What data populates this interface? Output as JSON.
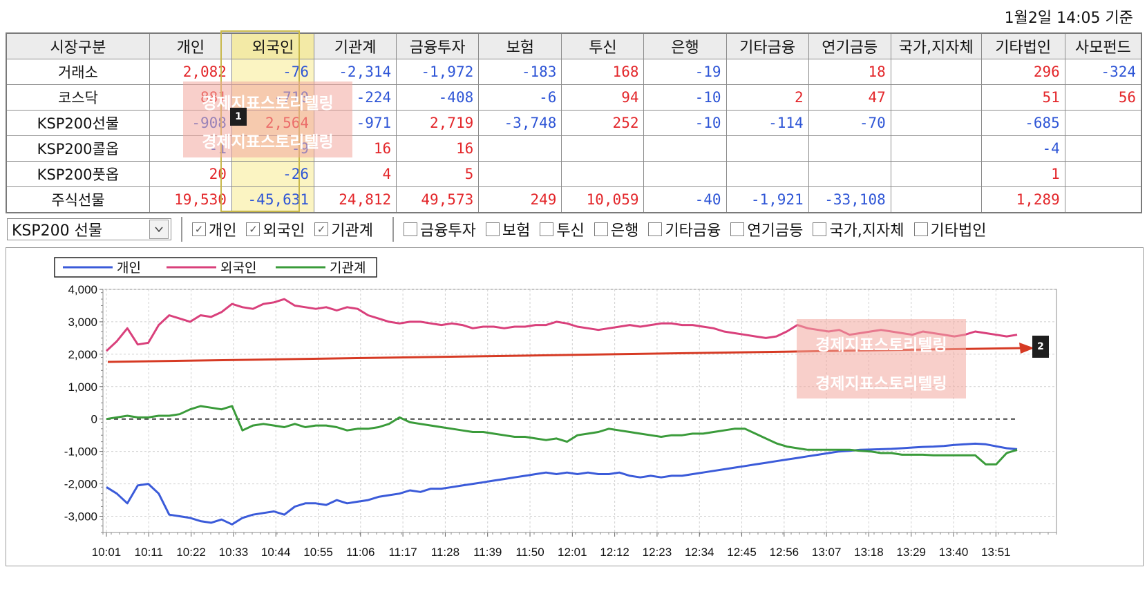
{
  "timestamp": "1월2일 14:05 기준",
  "table": {
    "headers": [
      "시장구분",
      "개인",
      "외국인",
      "기관계",
      "금융투자",
      "보험",
      "투신",
      "은행",
      "기타금융",
      "연기금등",
      "국가,지자체",
      "기타법인",
      "사모펀드"
    ],
    "rows": [
      {
        "label": "거래소",
        "cells": [
          "2,082",
          "-76",
          "-2,314",
          "-1,972",
          "-183",
          "168",
          "-19",
          "",
          "18",
          "",
          "296",
          "-324"
        ]
      },
      {
        "label": "코스닥",
        "cells": [
          "881",
          "-710",
          "-224",
          "-408",
          "-6",
          "94",
          "-10",
          "2",
          "47",
          "",
          "51",
          "56"
        ]
      },
      {
        "label": "KSP200선물",
        "cells": [
          "-908",
          "2,564",
          "-971",
          "2,719",
          "-3,748",
          "252",
          "-10",
          "-114",
          "-70",
          "",
          "-685",
          ""
        ]
      },
      {
        "label": "KSP200콜옵",
        "cells": [
          "-1",
          "-9",
          "16",
          "16",
          "",
          "",
          "",
          "",
          "",
          "",
          "-4",
          ""
        ]
      },
      {
        "label": "KSP200풋옵",
        "cells": [
          "20",
          "-26",
          "4",
          "5",
          "",
          "",
          "",
          "",
          "",
          "",
          "1",
          ""
        ]
      },
      {
        "label": "주식선물",
        "cells": [
          "19,530",
          "-45,631",
          "24,812",
          "49,573",
          "249",
          "10,059",
          "-40",
          "-1,921",
          "-33,108",
          "",
          "1,289",
          ""
        ]
      }
    ]
  },
  "controls": {
    "select_value": "KSP200 선물",
    "checkboxes": [
      {
        "label": "개인",
        "checked": true
      },
      {
        "label": "외국인",
        "checked": true
      },
      {
        "label": "기관계",
        "checked": true
      },
      {
        "label": "금융투자",
        "checked": false
      },
      {
        "label": "보험",
        "checked": false
      },
      {
        "label": "투신",
        "checked": false
      },
      {
        "label": "은행",
        "checked": false
      },
      {
        "label": "기타금융",
        "checked": false
      },
      {
        "label": "연기금등",
        "checked": false
      },
      {
        "label": "국가,지자체",
        "checked": false
      },
      {
        "label": "기타법인",
        "checked": false
      }
    ]
  },
  "watermark_text": "경제지표스토리텔링",
  "markers": [
    "1",
    "2"
  ],
  "colors": {
    "positive": "#e3262a",
    "negative": "#2e55d6",
    "highlight": "#fbf4c2",
    "arrow": "#d63a24"
  },
  "chart_data": {
    "type": "line",
    "x": [
      "10:01",
      "10:04",
      "10:07",
      "10:10",
      "10:11",
      "10:14",
      "10:17",
      "10:20",
      "10:22",
      "10:25",
      "10:28",
      "10:31",
      "10:33",
      "10:36",
      "10:39",
      "10:42",
      "10:44",
      "10:47",
      "10:50",
      "10:53",
      "10:55",
      "10:58",
      "11:01",
      "11:04",
      "11:06",
      "11:09",
      "11:12",
      "11:15",
      "11:17",
      "11:20",
      "11:23",
      "11:26",
      "11:28",
      "11:31",
      "11:34",
      "11:37",
      "11:39",
      "11:42",
      "11:45",
      "11:48",
      "11:50",
      "11:53",
      "11:56",
      "11:59",
      "12:01",
      "12:04",
      "12:07",
      "12:10",
      "12:12",
      "12:15",
      "12:18",
      "12:21",
      "12:23",
      "12:26",
      "12:29",
      "12:32",
      "12:34",
      "12:37",
      "12:40",
      "12:43",
      "12:45",
      "12:48",
      "12:51",
      "12:54",
      "12:56",
      "12:59",
      "13:02",
      "13:05",
      "13:07",
      "13:10",
      "13:13",
      "13:16",
      "13:18",
      "13:21",
      "13:24",
      "13:27",
      "13:29",
      "13:32",
      "13:35",
      "13:38",
      "13:40",
      "13:43",
      "13:46",
      "13:49",
      "13:51",
      "13:54",
      "13:57",
      "14:00"
    ],
    "x_ticks": [
      "10:01",
      "10:11",
      "10:22",
      "10:33",
      "10:44",
      "10:55",
      "11:06",
      "11:17",
      "11:28",
      "11:39",
      "11:50",
      "12:01",
      "12:12",
      "12:23",
      "12:34",
      "12:45",
      "12:56",
      "13:07",
      "13:18",
      "13:29",
      "13:40",
      "13:51"
    ],
    "series": [
      {
        "name": "개인",
        "color": "#3b5bd9",
        "values": [
          -2100,
          -2300,
          -2600,
          -2050,
          -2000,
          -2300,
          -2950,
          -3000,
          -3050,
          -3150,
          -3200,
          -3100,
          -3250,
          -3050,
          -2950,
          -2900,
          -2850,
          -2950,
          -2700,
          -2600,
          -2600,
          -2650,
          -2500,
          -2600,
          -2550,
          -2500,
          -2400,
          -2350,
          -2300,
          -2200,
          -2250,
          -2150,
          -2150,
          -2100,
          -2050,
          -2000,
          -1950,
          -1900,
          -1850,
          -1800,
          -1750,
          -1700,
          -1650,
          -1700,
          -1650,
          -1700,
          -1650,
          -1700,
          -1700,
          -1650,
          -1750,
          -1800,
          -1750,
          -1800,
          -1750,
          -1750,
          -1700,
          -1650,
          -1600,
          -1550,
          -1500,
          -1450,
          -1400,
          -1350,
          -1300,
          -1250,
          -1200,
          -1150,
          -1100,
          -1050,
          -1000,
          -980,
          -950,
          -940,
          -930,
          -920,
          -900,
          -880,
          -860,
          -850,
          -830,
          -800,
          -780,
          -760,
          -780,
          -840,
          -900,
          -930
        ]
      },
      {
        "name": "외국인",
        "color": "#d9407b",
        "values": [
          2100,
          2400,
          2800,
          2300,
          2350,
          2900,
          3200,
          3100,
          3000,
          3200,
          3150,
          3300,
          3550,
          3450,
          3400,
          3550,
          3600,
          3700,
          3500,
          3450,
          3400,
          3450,
          3350,
          3450,
          3400,
          3200,
          3100,
          3000,
          2950,
          3000,
          3000,
          2950,
          2900,
          2950,
          2900,
          2800,
          2850,
          2850,
          2800,
          2850,
          2850,
          2900,
          2900,
          3000,
          2950,
          2850,
          2800,
          2750,
          2800,
          2850,
          2900,
          2850,
          2900,
          2950,
          2950,
          2900,
          2900,
          2850,
          2800,
          2700,
          2650,
          2600,
          2550,
          2500,
          2550,
          2700,
          2900,
          2800,
          2750,
          2700,
          2750,
          2600,
          2650,
          2700,
          2750,
          2700,
          2650,
          2600,
          2700,
          2650,
          2600,
          2550,
          2600,
          2700,
          2650,
          2600,
          2550,
          2600
        ]
      },
      {
        "name": "기관계",
        "color": "#3a9b3a",
        "values": [
          0,
          50,
          100,
          50,
          50,
          100,
          100,
          150,
          300,
          400,
          350,
          300,
          400,
          -350,
          -200,
          -150,
          -200,
          -250,
          -150,
          -250,
          -200,
          -200,
          -250,
          -350,
          -300,
          -300,
          -250,
          -150,
          50,
          -100,
          -150,
          -200,
          -250,
          -300,
          -350,
          -400,
          -400,
          -450,
          -500,
          -550,
          -550,
          -600,
          -650,
          -600,
          -700,
          -500,
          -450,
          -400,
          -300,
          -350,
          -400,
          -450,
          -500,
          -550,
          -500,
          -500,
          -450,
          -450,
          -400,
          -350,
          -300,
          -300,
          -450,
          -600,
          -750,
          -850,
          -900,
          -950,
          -950,
          -950,
          -950,
          -950,
          -980,
          -1000,
          -1050,
          -1050,
          -1100,
          -1100,
          -1100,
          -1120,
          -1120,
          -1120,
          -1120,
          -1120,
          -1400,
          -1400,
          -1050,
          -950
        ]
      }
    ],
    "ylim": [
      -3500,
      4000
    ],
    "yticks": [
      -3000,
      -2000,
      -1000,
      0,
      1000,
      2000,
      3000,
      4000
    ],
    "ytick_labels": [
      "-3,000",
      "-2,000",
      "-1,000",
      "0",
      "1,000",
      "2,000",
      "3,000",
      "4,000"
    ],
    "zero_line": "dashed",
    "grid": true,
    "legend": "top-left"
  }
}
